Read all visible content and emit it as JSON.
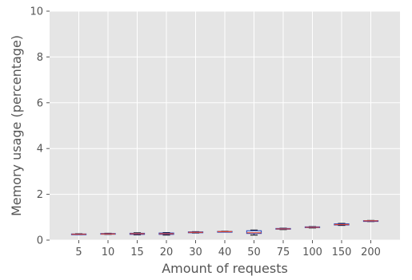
{
  "chart_data": {
    "type": "box",
    "title": "",
    "xlabel": "Amount of requests",
    "ylabel": "Memory usage (percentage)",
    "categories": [
      "5",
      "10",
      "15",
      "20",
      "30",
      "40",
      "50",
      "75",
      "100",
      "150",
      "200"
    ],
    "ylim": [
      0,
      10
    ],
    "yticks": [
      0,
      2,
      4,
      6,
      8,
      10
    ],
    "grid": true,
    "boxes": [
      {
        "category": "5",
        "whislo": 0.24,
        "q1": 0.25,
        "med": 0.26,
        "q3": 0.27,
        "whishi": 0.28
      },
      {
        "category": "10",
        "whislo": 0.25,
        "q1": 0.26,
        "med": 0.27,
        "q3": 0.29,
        "whishi": 0.3
      },
      {
        "category": "15",
        "whislo": 0.23,
        "q1": 0.25,
        "med": 0.28,
        "q3": 0.3,
        "whishi": 0.32
      },
      {
        "category": "20",
        "whislo": 0.22,
        "q1": 0.25,
        "med": 0.28,
        "q3": 0.31,
        "whishi": 0.33
      },
      {
        "category": "30",
        "whislo": 0.31,
        "q1": 0.32,
        "med": 0.34,
        "q3": 0.36,
        "whishi": 0.37
      },
      {
        "category": "40",
        "whislo": 0.35,
        "q1": 0.36,
        "med": 0.37,
        "q3": 0.38,
        "whishi": 0.39
      },
      {
        "category": "50",
        "whislo": 0.22,
        "q1": 0.29,
        "med": 0.32,
        "q3": 0.41,
        "whishi": 0.44
      },
      {
        "category": "75",
        "whislo": 0.46,
        "q1": 0.48,
        "med": 0.49,
        "q3": 0.51,
        "whishi": 0.52
      },
      {
        "category": "100",
        "whislo": 0.53,
        "q1": 0.55,
        "med": 0.56,
        "q3": 0.58,
        "whishi": 0.59
      },
      {
        "category": "150",
        "whislo": 0.64,
        "q1": 0.66,
        "med": 0.68,
        "q3": 0.71,
        "whishi": 0.73
      },
      {
        "category": "200",
        "whislo": 0.81,
        "q1": 0.82,
        "med": 0.84,
        "q3": 0.85,
        "whishi": 0.86
      }
    ],
    "colors": {
      "panel": "#e5e5e5",
      "grid": "#ffffff",
      "text": "#555555",
      "box": "#1f3fbf",
      "whisker": "#1f3fbf",
      "median": "#e24a33",
      "cap": "#000000"
    }
  }
}
